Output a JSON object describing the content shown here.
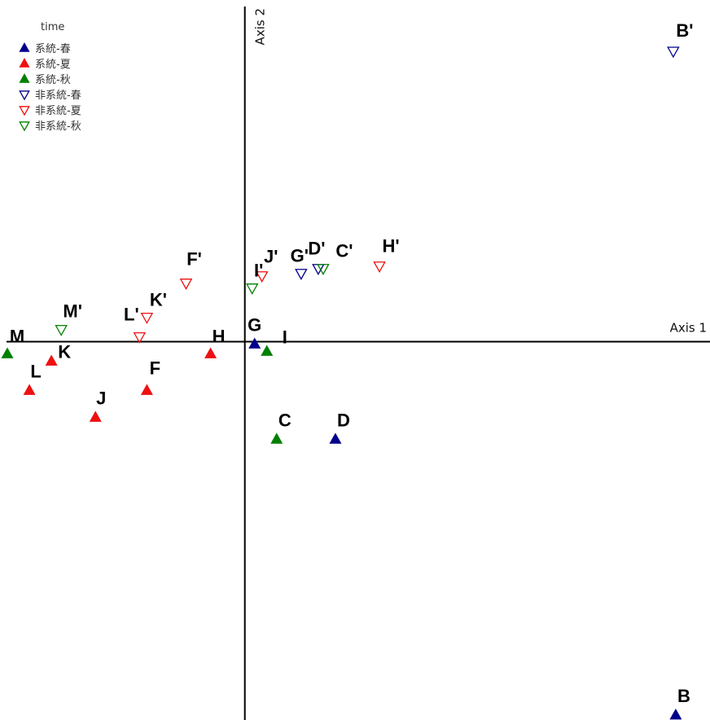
{
  "chart_data": {
    "type": "scatter",
    "xlabel": "Axis 1",
    "ylabel": "Axis 2",
    "xlim": [
      -1.0,
      1.9
    ],
    "ylim": [
      -1.55,
      1.4
    ],
    "grid": false,
    "legend": {
      "title": "time",
      "placement": "top-left",
      "entries": [
        {
          "name": "系統-春",
          "color": "#00008b",
          "marker": "triangle-up-filled"
        },
        {
          "name": "系統-夏",
          "color": "#ee1111",
          "marker": "triangle-up-filled"
        },
        {
          "name": "系統-秋",
          "color": "#008000",
          "marker": "triangle-up-filled"
        },
        {
          "name": "非系統-春",
          "color": "#00008b",
          "marker": "triangle-down-open"
        },
        {
          "name": "非系統-夏",
          "color": "#ee1111",
          "marker": "triangle-down-open"
        },
        {
          "name": "非系統-秋",
          "color": "#008000",
          "marker": "triangle-down-open"
        }
      ]
    },
    "series": [
      {
        "name": "系統-春",
        "points": [
          {
            "label": "G",
            "x": 0.04,
            "y": -0.01
          },
          {
            "label": "D",
            "x": 0.37,
            "y": -0.4
          },
          {
            "label": "B",
            "x": 1.76,
            "y": -1.53
          }
        ]
      },
      {
        "name": "系統-夏",
        "points": [
          {
            "label": "H",
            "x": -0.14,
            "y": -0.05
          },
          {
            "label": "F",
            "x": -0.4,
            "y": -0.2
          },
          {
            "label": "J",
            "x": -0.61,
            "y": -0.31
          },
          {
            "label": "K",
            "x": -0.79,
            "y": -0.08
          },
          {
            "label": "L",
            "x": -0.88,
            "y": -0.2
          }
        ]
      },
      {
        "name": "系統-秋",
        "points": [
          {
            "label": "I",
            "x": 0.09,
            "y": -0.04
          },
          {
            "label": "C",
            "x": 0.13,
            "y": -0.4
          },
          {
            "label": "M",
            "x": -0.97,
            "y": -0.05
          }
        ]
      },
      {
        "name": "非系統-春",
        "points": [
          {
            "label": "G'",
            "x": 0.23,
            "y": 0.28
          },
          {
            "label": "D'",
            "x": 0.3,
            "y": 0.3
          },
          {
            "label": "B'",
            "x": 1.75,
            "y": 1.19
          }
        ]
      },
      {
        "name": "非系統-夏",
        "points": [
          {
            "label": "H'",
            "x": 0.55,
            "y": 0.31
          },
          {
            "label": "J'",
            "x": 0.07,
            "y": 0.27
          },
          {
            "label": "F'",
            "x": -0.24,
            "y": 0.24
          },
          {
            "label": "K'",
            "x": -0.4,
            "y": 0.1
          },
          {
            "label": "L'",
            "x": -0.43,
            "y": 0.02
          }
        ]
      },
      {
        "name": "非系統-秋",
        "points": [
          {
            "label": "C'",
            "x": 0.32,
            "y": 0.3
          },
          {
            "label": "I'",
            "x": 0.03,
            "y": 0.22
          },
          {
            "label": "M'",
            "x": -0.75,
            "y": 0.05
          }
        ]
      }
    ]
  }
}
